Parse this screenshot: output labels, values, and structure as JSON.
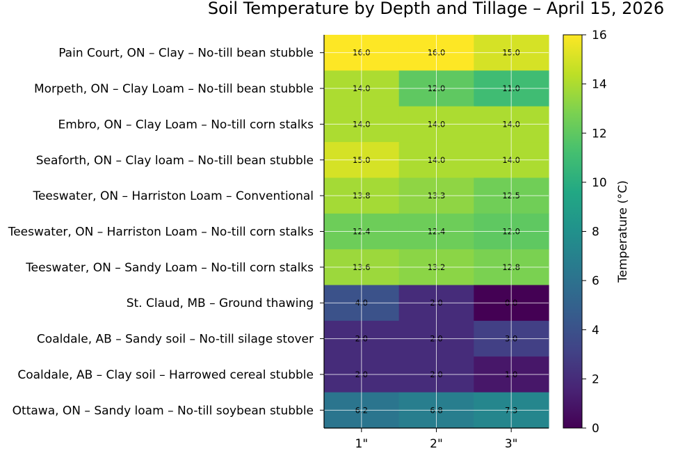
{
  "chart_data": {
    "type": "heatmap",
    "title": "Soil Temperature by Depth and Tillage – April 15, 2026",
    "x_categories": [
      "1\"",
      "2\"",
      "3\""
    ],
    "y_categories": [
      "Pain Court, ON – Clay – No-till bean stubble",
      "Morpeth, ON – Clay Loam – No-till bean stubble",
      "Embro, ON – Clay Loam – No-till corn stalks",
      "Seaforth, ON – Clay loam – No-till bean stubble",
      "Teeswater, ON – Harriston Loam – Conventional",
      "Teeswater, ON – Harriston Loam – No-till corn stalks",
      "Teeswater, ON – Sandy Loam – No-till corn stalks",
      "St. Claud, MB – Ground thawing",
      "Coaldale, AB – Sandy soil – No-till silage stover",
      "Coaldale, AB – Clay soil – Harrowed cereal stubble",
      "Ottawa, ON – Sandy loam – No-till soybean stubble"
    ],
    "values": [
      [
        16.0,
        16.0,
        15.0
      ],
      [
        14.0,
        12.0,
        11.0
      ],
      [
        14.0,
        14.0,
        14.0
      ],
      [
        15.0,
        14.0,
        14.0
      ],
      [
        13.8,
        13.3,
        12.5
      ],
      [
        12.4,
        12.4,
        12.0
      ],
      [
        13.6,
        13.2,
        12.8
      ],
      [
        4.0,
        2.0,
        0.0
      ],
      [
        2.0,
        2.0,
        3.0
      ],
      [
        2.0,
        2.0,
        1.0
      ],
      [
        6.2,
        6.8,
        7.3
      ]
    ],
    "value_labels": [
      [
        "16.0",
        "16.0",
        "15.0"
      ],
      [
        "14.0",
        "12.0",
        "11.0"
      ],
      [
        "14.0",
        "14.0",
        "14.0"
      ],
      [
        "15.0",
        "14.0",
        "14.0"
      ],
      [
        "13.8",
        "13.3",
        "12.5"
      ],
      [
        "12.4",
        "12.4",
        "12.0"
      ],
      [
        "13.6",
        "13.2",
        "12.8"
      ],
      [
        "4.0",
        "2.0",
        "0.0"
      ],
      [
        "2.0",
        "2.0",
        "3.0"
      ],
      [
        "2.0",
        "2.0",
        "1.0"
      ],
      [
        "6.2",
        "6.8",
        "7.3"
      ]
    ],
    "colormap": "viridis",
    "vmin": 0,
    "vmax": 16,
    "colorbar": {
      "label": "Temperature (°C)",
      "ticks": [
        0,
        2,
        4,
        6,
        8,
        10,
        12,
        14,
        16
      ]
    },
    "grid": true
  }
}
